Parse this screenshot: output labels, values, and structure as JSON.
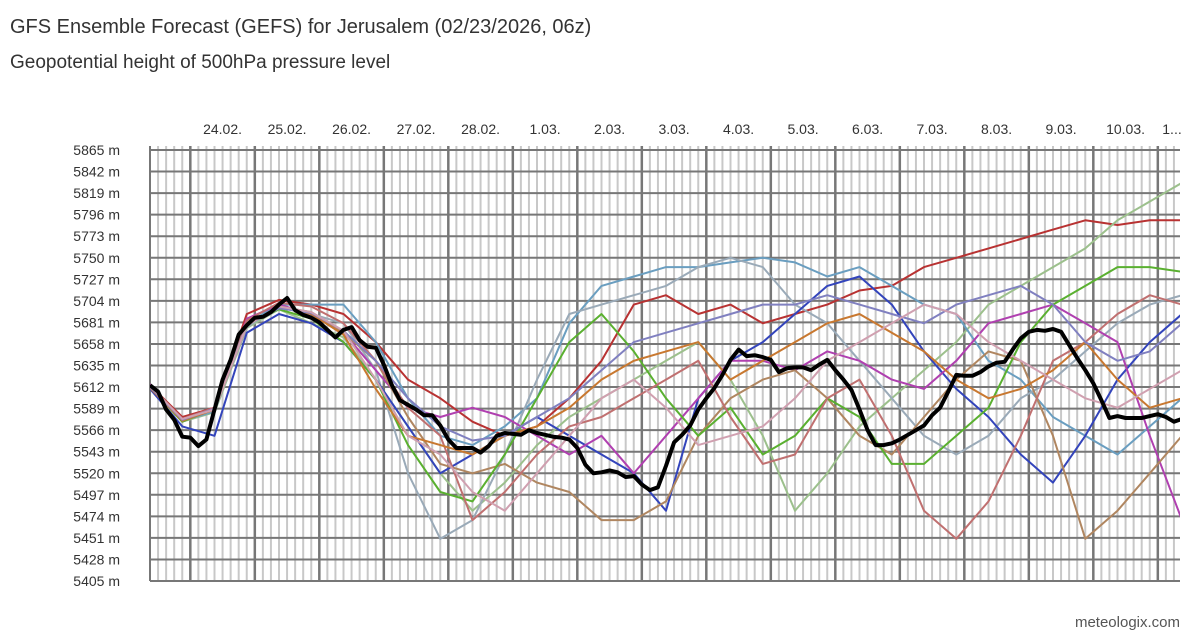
{
  "header": {
    "title": "GFS Ensemble Forecast (GEFS) for Jerusalem (02/23/2026, 06z)",
    "subtitle": "Geopotential height of 500hPa pressure level"
  },
  "footer": {
    "credit": "meteologix.com"
  },
  "chart_data": {
    "type": "line",
    "title": "GFS Ensemble Forecast (GEFS) for Jerusalem (02/23/2026, 06z)",
    "subtitle": "Geopotential height of 500hPa pressure level",
    "ylim": [
      5405,
      5865
    ],
    "y_ticks": [
      "5865 m",
      "5842 m",
      "5819 m",
      "5796 m",
      "5773 m",
      "5750 m",
      "5727 m",
      "5704 m",
      "5681 m",
      "5658 m",
      "5635 m",
      "5612 m",
      "5589 m",
      "5566 m",
      "5543 m",
      "5520 m",
      "5497 m",
      "5474 m",
      "5451 m",
      "5428 m",
      "5405 m"
    ],
    "x_ticks": [
      "24.02.",
      "25.02.",
      "26.02.",
      "27.02.",
      "28.02.",
      "1.03.",
      "2.03.",
      "3.03.",
      "4.03.",
      "5.03.",
      "6.03.",
      "7.03.",
      "8.03.",
      "9.03.",
      "10.03.",
      "1..."
    ],
    "x_start": "2026-02-23 09z",
    "grid": true,
    "control": {
      "color": "#000000",
      "time_step_hours": 3,
      "values": [
        5614,
        5607,
        5588,
        5577,
        5559,
        5558,
        5549,
        5556,
        5588,
        5620,
        5641,
        5668,
        5678,
        5686,
        5687,
        5692,
        5700,
        5707,
        5694,
        5689,
        5686,
        5681,
        5673,
        5665,
        5673,
        5676,
        5662,
        5655,
        5654,
        5636,
        5614,
        5598,
        5593,
        5588,
        5582,
        5582,
        5571,
        5556,
        5547,
        5547,
        5547,
        5542,
        5549,
        5560,
        5563,
        5562,
        5561,
        5566,
        5563,
        5561,
        5559,
        5558,
        5556,
        5547,
        5529,
        5520,
        5521,
        5523,
        5521,
        5516,
        5517,
        5508,
        5502,
        5505,
        5528,
        5553,
        5561,
        5571,
        5588,
        5600,
        5611,
        5625,
        5641,
        5652,
        5645,
        5646,
        5644,
        5641,
        5628,
        5632,
        5633,
        5633,
        5630,
        5636,
        5641,
        5630,
        5620,
        5609,
        5588,
        5566,
        5550,
        5550,
        5552,
        5556,
        5561,
        5566,
        5571,
        5582,
        5590,
        5607,
        5625,
        5624,
        5624,
        5628,
        5634,
        5638,
        5639,
        5652,
        5664,
        5671,
        5673,
        5672,
        5674,
        5671,
        5657,
        5643,
        5630,
        5616,
        5598,
        5579,
        5581,
        5579,
        5579,
        5579,
        5581,
        5583,
        5580,
        5575,
        5578,
        5581
      ]
    },
    "members_time_step_hours": 12,
    "members": [
      {
        "color": "#b83232",
        "values": [
          5614,
          5580,
          5590,
          5690,
          5705,
          5700,
          5690,
          5660,
          5620,
          5600,
          5575,
          5560,
          5570,
          5600,
          5640,
          5700,
          5710,
          5690,
          5700,
          5680,
          5690,
          5700,
          5715,
          5720,
          5740,
          5750,
          5760,
          5770,
          5780,
          5790,
          5785,
          5790,
          5790
        ]
      },
      {
        "color": "#9cc08c",
        "values": [
          5610,
          5575,
          5585,
          5675,
          5695,
          5680,
          5665,
          5620,
          5570,
          5520,
          5480,
          5510,
          5550,
          5580,
          5600,
          5620,
          5640,
          5660,
          5620,
          5560,
          5480,
          5520,
          5570,
          5600,
          5630,
          5660,
          5700,
          5720,
          5740,
          5760,
          5790,
          5810,
          5830
        ]
      },
      {
        "color": "#6a9ec0",
        "values": [
          5612,
          5576,
          5586,
          5680,
          5700,
          5700,
          5700,
          5660,
          5600,
          5560,
          5550,
          5570,
          5600,
          5680,
          5720,
          5730,
          5740,
          5740,
          5745,
          5750,
          5745,
          5730,
          5740,
          5720,
          5700,
          5690,
          5640,
          5620,
          5580,
          5560,
          5540,
          5570,
          5600
        ]
      },
      {
        "color": "#9aaab8",
        "values": [
          5612,
          5578,
          5587,
          5676,
          5698,
          5690,
          5680,
          5630,
          5520,
          5450,
          5470,
          5540,
          5620,
          5690,
          5700,
          5710,
          5720,
          5740,
          5750,
          5740,
          5700,
          5680,
          5640,
          5600,
          5560,
          5540,
          5560,
          5600,
          5620,
          5650,
          5680,
          5700,
          5710
        ]
      },
      {
        "color": "#3344bb",
        "values": [
          5610,
          5570,
          5560,
          5670,
          5690,
          5680,
          5660,
          5620,
          5570,
          5520,
          5540,
          5560,
          5580,
          5560,
          5540,
          5520,
          5480,
          5600,
          5640,
          5660,
          5690,
          5720,
          5730,
          5700,
          5650,
          5610,
          5580,
          5540,
          5510,
          5560,
          5620,
          5660,
          5690
        ]
      },
      {
        "color": "#b040b0",
        "values": [
          5615,
          5575,
          5590,
          5685,
          5700,
          5690,
          5670,
          5630,
          5590,
          5580,
          5590,
          5580,
          5560,
          5540,
          5560,
          5520,
          5560,
          5600,
          5640,
          5640,
          5630,
          5650,
          5640,
          5620,
          5610,
          5640,
          5680,
          5690,
          5700,
          5680,
          5660,
          5560,
          5470
        ]
      },
      {
        "color": "#b08660",
        "values": [
          5613,
          5577,
          5588,
          5678,
          5698,
          5692,
          5670,
          5640,
          5580,
          5530,
          5520,
          5530,
          5510,
          5500,
          5470,
          5470,
          5490,
          5560,
          5600,
          5620,
          5630,
          5600,
          5560,
          5540,
          5580,
          5620,
          5650,
          5640,
          5560,
          5450,
          5480,
          5520,
          5560
        ]
      },
      {
        "color": "#5ab030",
        "values": [
          5612,
          5575,
          5589,
          5680,
          5695,
          5685,
          5660,
          5620,
          5550,
          5500,
          5490,
          5540,
          5600,
          5660,
          5690,
          5650,
          5600,
          5560,
          5590,
          5540,
          5560,
          5600,
          5580,
          5530,
          5530,
          5560,
          5590,
          5660,
          5700,
          5720,
          5740,
          5740,
          5735
        ]
      },
      {
        "color": "#c07070",
        "values": [
          5614,
          5578,
          5590,
          5683,
          5702,
          5698,
          5680,
          5640,
          5590,
          5560,
          5470,
          5500,
          5540,
          5570,
          5580,
          5600,
          5620,
          5640,
          5580,
          5530,
          5540,
          5600,
          5620,
          5560,
          5480,
          5450,
          5490,
          5560,
          5640,
          5660,
          5690,
          5710,
          5700
        ]
      },
      {
        "color": "#c87830",
        "values": [
          5611,
          5576,
          5588,
          5679,
          5697,
          5690,
          5668,
          5610,
          5560,
          5550,
          5540,
          5560,
          5570,
          5590,
          5620,
          5640,
          5650,
          5660,
          5620,
          5640,
          5660,
          5680,
          5690,
          5670,
          5650,
          5620,
          5600,
          5610,
          5630,
          5660,
          5620,
          5590,
          5600
        ]
      },
      {
        "color": "#8080c0",
        "values": [
          5612,
          5577,
          5589,
          5679,
          5696,
          5691,
          5672,
          5640,
          5600,
          5570,
          5555,
          5560,
          5580,
          5600,
          5630,
          5660,
          5670,
          5680,
          5690,
          5700,
          5700,
          5710,
          5700,
          5690,
          5680,
          5700,
          5710,
          5720,
          5700,
          5660,
          5640,
          5650,
          5680
        ]
      },
      {
        "color": "#d0a0b0",
        "values": [
          5613,
          5578,
          5588,
          5678,
          5698,
          5692,
          5672,
          5620,
          5560,
          5540,
          5500,
          5480,
          5520,
          5560,
          5600,
          5620,
          5590,
          5550,
          5560,
          5570,
          5600,
          5640,
          5660,
          5680,
          5700,
          5690,
          5660,
          5640,
          5620,
          5600,
          5590,
          5610,
          5630
        ]
      }
    ]
  }
}
